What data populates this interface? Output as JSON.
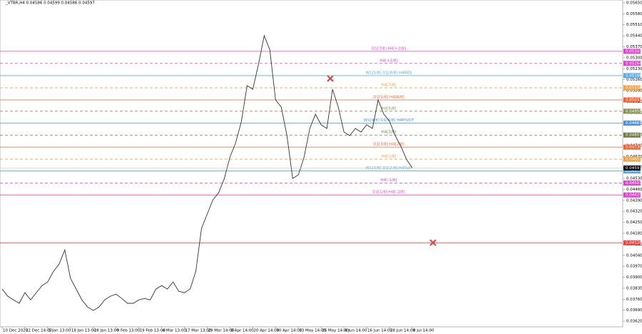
{
  "chart_data": {
    "type": "line",
    "title": "_VTBR,H4  0.04586 0.04599 0.04586 0.04597",
    "categories": [
      "10 Dec 2020",
      null,
      null,
      null,
      "22 Dec 14:00",
      null,
      null,
      null,
      "5 Jan 13:00",
      null,
      null,
      null,
      "18 Jan 13:00",
      null,
      null,
      null,
      "28 Jan 13:00",
      null,
      null,
      null,
      "9 Feb 13:00",
      null,
      null,
      null,
      "19 Feb 13:00",
      null,
      null,
      null,
      "4 Mar 13:00",
      null,
      null,
      null,
      "17 Mar 13:00",
      null,
      null,
      null,
      "29 Mar 14:00",
      null,
      null,
      null,
      "8 Apr 14:00",
      null,
      null,
      null,
      "20 Apr 14:00",
      null,
      null,
      null,
      "30 Apr 14:00",
      null,
      null,
      null,
      "13 May 14:00",
      null,
      null,
      null,
      "25 May 14:00",
      null,
      null,
      null,
      "4 Jun 14:00",
      null,
      null,
      null,
      "16 Jun 14:00",
      null,
      null,
      null,
      "28 Jun 14:00",
      null,
      null,
      null,
      "8 Jul 14:00"
    ],
    "values": [
      0.03825,
      0.03779,
      0.03756,
      0.03734,
      0.03802,
      0.03756,
      0.03802,
      0.03847,
      0.0387,
      0.03938,
      0.03984,
      0.04075,
      0.03893,
      0.03825,
      0.03756,
      0.03711,
      0.03688,
      0.03711,
      0.03756,
      0.03779,
      0.03793,
      0.03765,
      0.03734,
      0.03734,
      0.03756,
      0.03765,
      0.03756,
      0.03825,
      0.03847,
      0.03825,
      0.0387,
      0.03811,
      0.03802,
      0.03825,
      0.03938,
      0.04212,
      0.04303,
      0.04394,
      0.04439,
      0.0453,
      0.04667,
      0.04758,
      0.04894,
      0.05122,
      0.05099,
      0.05259,
      0.05441,
      0.0535,
      0.05031,
      0.04985,
      0.04803,
      0.0453,
      0.04553,
      0.04667,
      0.04849,
      0.0494,
      0.04872,
      0.04849,
      0.05099,
      0.04985,
      0.04826,
      0.04803,
      0.04849,
      0.04826,
      0.04872,
      0.04849,
      0.05031,
      0.0494,
      0.04894,
      0.04803,
      0.04735,
      0.04651,
      0.04597
    ],
    "color": "#333333",
    "last": 0.04597,
    "last_label": "0.04597",
    "ylim": [
      0.03584,
      0.05668
    ],
    "yticks": [
      {
        "value": 0.0362,
        "label": "0.03620"
      },
      {
        "value": 0.0369,
        "label": "0.03690"
      },
      {
        "value": 0.0376,
        "label": "0.03760"
      },
      {
        "value": 0.0383,
        "label": "0.03830"
      },
      {
        "value": 0.039,
        "label": "0.03900"
      },
      {
        "value": 0.0397,
        "label": "0.03970"
      },
      {
        "value": 0.0404,
        "label": "0.04040"
      },
      {
        "value": 0.0411,
        "label": "0.04110"
      },
      {
        "value": 0.0418,
        "label": "0.04180"
      },
      {
        "value": 0.0425,
        "label": "0.04250"
      },
      {
        "value": 0.0432,
        "label": "0.04320"
      },
      {
        "value": 0.0439,
        "label": "0.04390"
      },
      {
        "value": 0.0446,
        "label": "0.04460"
      },
      {
        "value": 0.0453,
        "label": "0.04530"
      },
      {
        "value": 0.046,
        "label": "0.04600"
      },
      {
        "value": 0.0467,
        "label": "0.04670"
      },
      {
        "value": 0.0474,
        "label": "0.04740"
      },
      {
        "value": 0.0481,
        "label": "0.04810"
      },
      {
        "value": 0.0488,
        "label": "0.04880"
      },
      {
        "value": 0.0495,
        "label": "0.04950"
      },
      {
        "value": 0.0502,
        "label": "0.05020"
      },
      {
        "value": 0.0509,
        "label": "0.05090"
      },
      {
        "value": 0.0516,
        "label": "0.05160"
      },
      {
        "value": 0.0523,
        "label": "0.05230"
      },
      {
        "value": 0.053,
        "label": "0.05300"
      },
      {
        "value": 0.0537,
        "label": "0.05370"
      },
      {
        "value": 0.0544,
        "label": "0.05440"
      },
      {
        "value": 0.0551,
        "label": "0.05510"
      },
      {
        "value": 0.0558,
        "label": "0.05580"
      },
      {
        "value": 0.0565,
        "label": "0.05650"
      }
    ],
    "levels": [
      {
        "value": 0.05341,
        "value_label": "0.05341",
        "label": "D1[7/8] H4[+2/8]",
        "color": "#e040d0",
        "dashed": false
      },
      {
        "value": 0.05264,
        "value_label": "0.05264",
        "label": "H4[+1/8]",
        "color": "#e040d0",
        "dashed": true
      },
      {
        "value": 0.05186,
        "value_label": "0.05186",
        "label": "W1[5/8] D1[8/8] H4RES",
        "color": "#58a8e8",
        "dashed": false
      },
      {
        "value": 0.05108,
        "value_label": "0.05108",
        "label": "H4[7/8]",
        "color": "#f0a040",
        "dashed": true
      },
      {
        "value": 0.05031,
        "value_label": "0.05031",
        "label": "D1[5/8] H4[6/8]",
        "color": "#f06030",
        "dashed": false
      },
      {
        "value": 0.04959,
        "value_label": "0.04959",
        "label": "H4[5/8]",
        "color": "#8a8f50",
        "dashed": true
      },
      {
        "value": 0.04883,
        "value_label": "0.04883",
        "label": "W1[4/8] D1[4/8] H4PIVOT",
        "color": "#4a90e0",
        "dashed": false
      },
      {
        "value": 0.04807,
        "value_label": "0.04807",
        "label": "H4[3/8]",
        "color": "#707a40",
        "dashed": true
      },
      {
        "value": 0.0473,
        "value_label": "0.04730",
        "label": "D1[3/8] H4[2/8]",
        "color": "#f06030",
        "dashed": false
      },
      {
        "value": 0.04653,
        "value_label": "0.04653",
        "label": "H4[1/8]",
        "color": "#f0a040",
        "dashed": true
      },
      {
        "value": 0.04578,
        "value_label": "0.04578",
        "label": "W1[3/8] D1[2/8] H4SUP",
        "color": "#58a8e8",
        "dashed": false
      },
      {
        "value": 0.04501,
        "value_label": "0.04501",
        "label": "H4[-1/8]",
        "color": "#e040d0",
        "dashed": true
      },
      {
        "value": 0.04425,
        "value_label": "0.04425",
        "label": "D1[1/8] H4[-2/8]",
        "color": "#e040d0",
        "dashed": false
      },
      {
        "value": 0.0412,
        "value_label": "0.04120",
        "color": "#f04040",
        "dashed": false
      }
    ]
  }
}
